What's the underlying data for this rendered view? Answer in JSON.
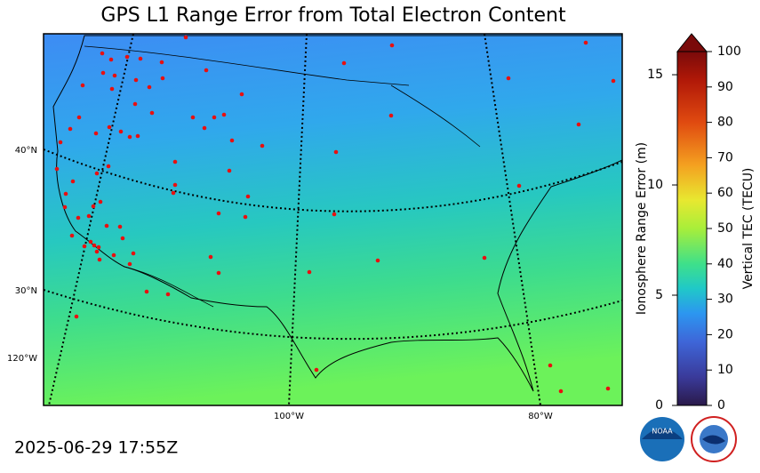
{
  "title": "GPS L1 Range Error from Total Electron Content",
  "timestamp": "2025-06-29 17:55Z",
  "map": {
    "lat_labels": [
      "40°N",
      "30°N"
    ],
    "lon_labels": [
      "120°W",
      "100°W",
      "80°W"
    ]
  },
  "colorbar": {
    "ylabel": "Ionosphere Range Error (m)",
    "ylim": [
      0,
      16.05
    ],
    "yticks": [
      0,
      5,
      10,
      15
    ],
    "y2label": "Vertical TEC (TECU)",
    "y2lim": [
      0,
      100
    ],
    "y2ticks": [
      0,
      10,
      20,
      30,
      40,
      50,
      60,
      70,
      80,
      90,
      100
    ]
  }
}
